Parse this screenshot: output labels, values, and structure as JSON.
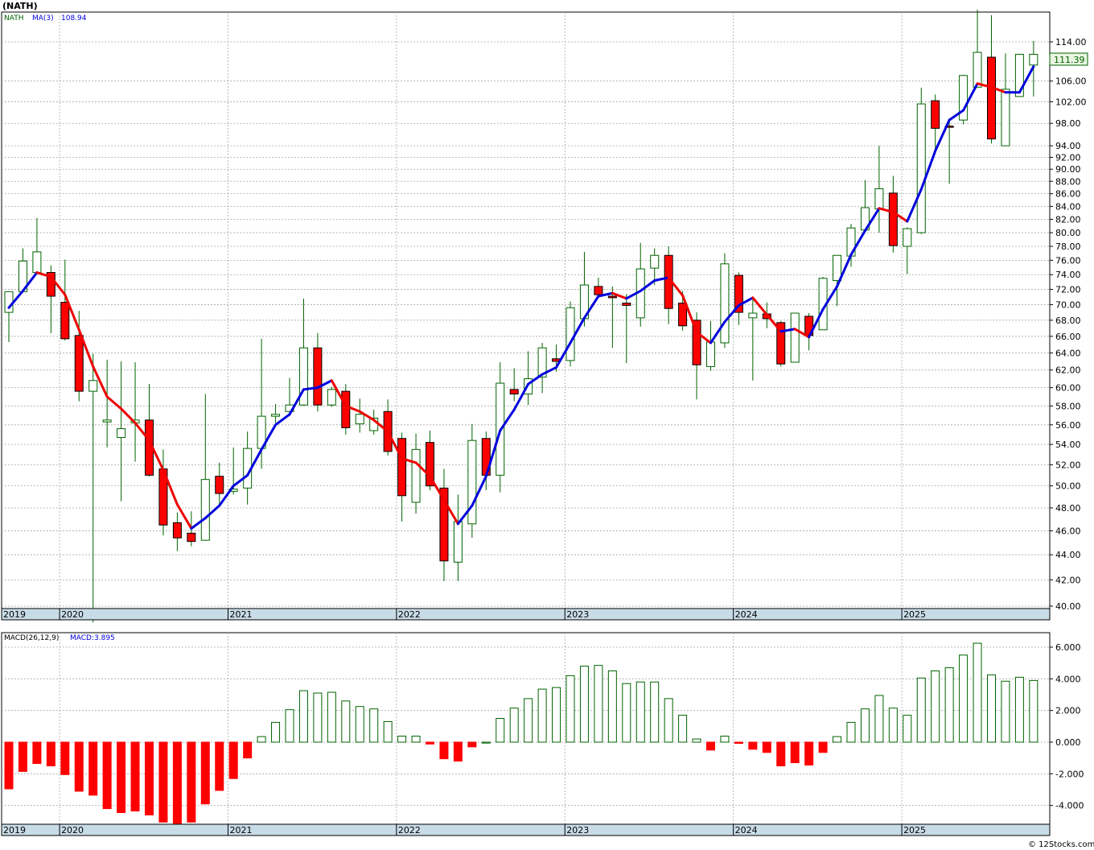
{
  "header": {
    "symbol_title": "(NATH)",
    "legend_symbol": "NATH",
    "legend_ma": "MA(3)",
    "legend_ma_value": "108.94"
  },
  "price_badge": "111.39",
  "macd_header": {
    "label": "MACD(26,12,9)",
    "value_label": "MACD:3.895"
  },
  "watermark": "© 12Stocks.com",
  "chart_data": [
    {
      "type": "candlestick",
      "title": "(NATH)",
      "scale": "log",
      "ylim": [
        38.5,
        118
      ],
      "y_ticks": [
        "40.00",
        "42.00",
        "44.00",
        "46.00",
        "48.00",
        "50.00",
        "52.00",
        "54.00",
        "56.00",
        "58.00",
        "60.00",
        "62.00",
        "64.00",
        "66.00",
        "68.00",
        "70.00",
        "72.00",
        "74.00",
        "76.00",
        "78.00",
        "80.00",
        "82.00",
        "84.00",
        "86.00",
        "88.00",
        "90.00",
        "92.00",
        "94.00",
        "98.00",
        "102.00",
        "106.00",
        "114.00"
      ],
      "x_ticks": [
        "2019",
        "2020",
        "2021",
        "2022",
        "2023",
        "2024",
        "2025"
      ],
      "x_tick_index": [
        0,
        4,
        16,
        28,
        40,
        52,
        64
      ],
      "period": "monthly",
      "ohlc": [
        [
          69,
          71.7,
          65.3,
          71.7
        ],
        [
          71.7,
          77.7,
          71.7,
          75.9
        ],
        [
          74.3,
          82.2,
          74.3,
          77.2
        ],
        [
          74.3,
          75.3,
          66.4,
          71.1
        ],
        [
          70.3,
          76.1,
          65.5,
          65.7
        ],
        [
          66.1,
          69.2,
          58.5,
          59.6
        ],
        [
          59.6,
          63.9,
          38.8,
          60.8
        ],
        [
          56.3,
          63.2,
          53.7,
          56.5
        ],
        [
          54.7,
          63.0,
          48.6,
          55.6
        ],
        [
          56.2,
          62.9,
          52.3,
          56.5
        ],
        [
          56.5,
          60.4,
          50.9,
          51.0
        ],
        [
          51.6,
          53.5,
          45.6,
          46.5
        ],
        [
          46.7,
          47.6,
          44.3,
          45.4
        ],
        [
          45.8,
          47.7,
          44.7,
          45.1
        ],
        [
          45.2,
          59.3,
          45.2,
          50.6
        ],
        [
          50.9,
          52.2,
          48.2,
          49.3
        ],
        [
          49.5,
          53.7,
          49.2,
          49.7
        ],
        [
          49.8,
          55.3,
          48.3,
          53.6
        ],
        [
          53.6,
          65.7,
          51.6,
          56.9
        ],
        [
          56.9,
          58.2,
          56.2,
          57.1
        ],
        [
          57.4,
          61.1,
          56.9,
          58.1
        ],
        [
          58.1,
          70.8,
          58.0,
          64.6
        ],
        [
          64.6,
          66.4,
          57.4,
          58.1
        ],
        [
          58.1,
          60.1,
          57.9,
          59.8
        ],
        [
          59.6,
          60.4,
          55.0,
          55.7
        ],
        [
          56.1,
          58.8,
          55.2,
          57.1
        ],
        [
          55.4,
          57.6,
          55.0,
          56.7
        ],
        [
          57.4,
          58.7,
          52.9,
          53.3
        ],
        [
          54.6,
          55.2,
          46.8,
          49.1
        ],
        [
          48.5,
          55.1,
          47.5,
          53.5
        ],
        [
          54.2,
          55.4,
          49.6,
          50.0
        ],
        [
          49.8,
          51.6,
          41.9,
          43.5
        ],
        [
          43.4,
          49.2,
          41.9,
          46.8
        ],
        [
          46.6,
          56.1,
          45.4,
          54.4
        ],
        [
          54.6,
          55.3,
          49.6,
          51.0
        ],
        [
          51.0,
          62.9,
          49.4,
          60.5
        ],
        [
          59.8,
          62.2,
          58.5,
          59.3
        ],
        [
          59.3,
          64.2,
          58.1,
          61.0
        ],
        [
          61.2,
          65.2,
          59.4,
          64.6
        ],
        [
          63.3,
          65.0,
          61.8,
          63.0
        ],
        [
          63.1,
          70.4,
          62.4,
          69.6
        ],
        [
          68.2,
          77.2,
          67.2,
          72.6
        ],
        [
          72.4,
          73.6,
          70.9,
          71.3
        ],
        [
          71.1,
          72.4,
          64.6,
          70.9
        ],
        [
          70.2,
          71.4,
          62.8,
          69.9
        ],
        [
          68.3,
          78.5,
          67.2,
          74.8
        ],
        [
          74.9,
          77.7,
          72.6,
          76.7
        ],
        [
          76.7,
          78.0,
          67.5,
          69.5
        ],
        [
          70.2,
          71.8,
          66.7,
          67.3
        ],
        [
          68.0,
          69.0,
          58.7,
          62.6
        ],
        [
          62.4,
          67.9,
          61.9,
          65.3
        ],
        [
          65.2,
          77.0,
          64.6,
          75.5
        ],
        [
          73.9,
          74.3,
          67.4,
          69.0
        ],
        [
          68.3,
          70.7,
          60.8,
          68.9
        ],
        [
          68.8,
          70.3,
          67.0,
          68.2
        ],
        [
          67.7,
          67.9,
          62.4,
          62.7
        ],
        [
          62.9,
          68.9,
          62.9,
          68.9
        ],
        [
          68.5,
          68.9,
          64.3,
          66.1
        ],
        [
          66.8,
          73.7,
          66.8,
          73.5
        ],
        [
          73.2,
          76.7,
          69.8,
          76.7
        ],
        [
          76.6,
          81.3,
          75.1,
          80.7
        ],
        [
          80.4,
          88.2,
          80.0,
          83.8
        ],
        [
          83.6,
          94.0,
          80.0,
          86.8
        ],
        [
          86.1,
          88.9,
          77.1,
          78.1
        ],
        [
          78.0,
          80.8,
          74.1,
          80.6
        ],
        [
          80.0,
          104.7,
          79.8,
          101.6
        ],
        [
          102.2,
          103.4,
          93.3,
          97.1
        ],
        [
          97.5,
          98.9,
          87.6,
          97.3
        ],
        [
          98.6,
          107.2,
          97.8,
          107.1
        ],
        [
          104.8,
          121.0,
          104.8,
          111.8
        ],
        [
          110.8,
          119.8,
          94.4,
          95.2
        ],
        [
          94.0,
          111.6,
          94.0,
          104.4
        ],
        [
          103.0,
          111.4,
          103.0,
          111.4
        ],
        [
          109.2,
          114.2,
          103.0,
          111.4
        ]
      ],
      "ma3": [
        69.6,
        71.8,
        74.3,
        73.7,
        71.3,
        66.8,
        62.4,
        59.0,
        57.7,
        56.2,
        54.4,
        51.5,
        48.3,
        46.2,
        47.1,
        48.2,
        50.0,
        51.0,
        53.5,
        56.0,
        57.1,
        59.8,
        60.0,
        60.8,
        58.0,
        57.4,
        56.5,
        55.3,
        52.6,
        52.2,
        50.9,
        48.7,
        46.6,
        48.2,
        50.9,
        55.4,
        57.6,
        60.4,
        61.5,
        62.3,
        65.2,
        68.3,
        71.1,
        71.5,
        70.8,
        71.8,
        73.2,
        73.6,
        71.2,
        66.5,
        65.2,
        67.8,
        69.9,
        70.9,
        68.7,
        66.6,
        66.9,
        65.9,
        69.4,
        72.4,
        76.8,
        80.3,
        83.7,
        83.1,
        81.7,
        86.7,
        93.1,
        98.6,
        100.4,
        105.5,
        104.8,
        103.8,
        103.8,
        108.9
      ]
    },
    {
      "type": "bar",
      "title": "MACD(26,12,9)",
      "ylim": [
        -5.2,
        6.9
      ],
      "y_ticks": [
        "-4.000",
        "-2.000",
        "0.000",
        "2.000",
        "4.000",
        "6.000"
      ],
      "x_ticks": [
        "2019",
        "2020",
        "2021",
        "2022",
        "2023",
        "2024",
        "2025"
      ],
      "values": [
        -2.95,
        -1.85,
        -1.35,
        -1.5,
        -2.05,
        -3.1,
        -3.35,
        -4.2,
        -4.45,
        -4.35,
        -4.6,
        -5.05,
        -5.2,
        -5.05,
        -3.9,
        -3.05,
        -2.3,
        -1.0,
        0.35,
        1.25,
        2.05,
        3.25,
        3.1,
        3.15,
        2.6,
        2.25,
        2.1,
        1.3,
        0.38,
        0.38,
        -0.12,
        -1.05,
        -1.2,
        -0.3,
        0.0,
        1.5,
        2.15,
        2.75,
        3.35,
        3.45,
        4.2,
        4.8,
        4.85,
        4.5,
        3.7,
        3.8,
        3.8,
        2.75,
        1.7,
        0.2,
        -0.5,
        0.38,
        -0.08,
        -0.45,
        -0.65,
        -1.5,
        -1.3,
        -1.45,
        -0.65,
        0.35,
        1.25,
        2.1,
        2.95,
        2.15,
        1.7,
        4.05,
        4.5,
        4.7,
        5.5,
        6.25,
        4.25,
        3.85,
        4.1,
        3.895
      ]
    }
  ],
  "colors": {
    "up_candle": "#006400",
    "down_candle": "#ff0000",
    "ma_up": "#0000dd",
    "ma_down": "#ee0000",
    "macd_pos": "#006400",
    "macd_neg": "#ff0000",
    "axis_band": "#c8dce8",
    "grid": "#a8a8a8",
    "badge_bg": "#e9f5e0"
  }
}
